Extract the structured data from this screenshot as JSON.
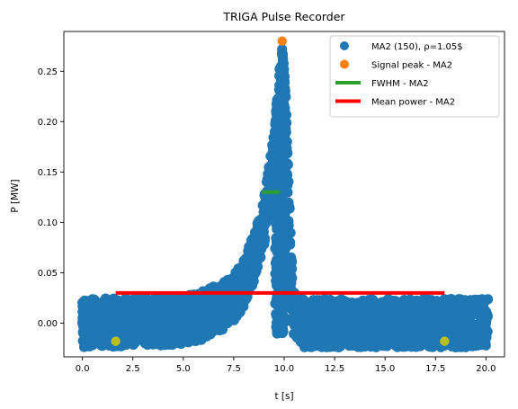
{
  "chart_data": {
    "type": "scatter",
    "title": "TRIGA Pulse Recorder",
    "xlabel": "t [s]",
    "ylabel": "P [MW]",
    "xlim": [
      -0.92,
      20.92
    ],
    "ylim": [
      -0.0335,
      0.2895
    ],
    "xticks": [
      0.0,
      2.5,
      5.0,
      7.5,
      10.0,
      12.5,
      15.0,
      17.5,
      20.0
    ],
    "xtick_labels": [
      "0.0",
      "2.5",
      "5.0",
      "7.5",
      "10.0",
      "12.5",
      "15.0",
      "17.5",
      "20.0"
    ],
    "yticks": [
      0.0,
      0.05,
      0.1,
      0.15,
      0.2,
      0.25
    ],
    "ytick_labels": [
      "0.00",
      "0.05",
      "0.10",
      "0.15",
      "0.20",
      "0.25"
    ],
    "grid": false,
    "legend_position": "top-right",
    "series": [
      {
        "name": "MA2 (150), ρ=1.05$",
        "kind": "scatter-band",
        "color": "#1f77b4",
        "x_range": [
          0.0,
          20.1
        ],
        "noise_band": 0.024,
        "baseline": 0.0,
        "envelope": [
          [
            0.0,
            0.0
          ],
          [
            5.0,
            0.002
          ],
          [
            6.0,
            0.008
          ],
          [
            7.0,
            0.017
          ],
          [
            7.5,
            0.025
          ],
          [
            8.0,
            0.04
          ],
          [
            8.5,
            0.065
          ],
          [
            9.0,
            0.1
          ],
          [
            9.5,
            0.165
          ],
          [
            9.8,
            0.235
          ],
          [
            9.9,
            0.255
          ],
          [
            10.05,
            0.22
          ],
          [
            10.25,
            0.1
          ],
          [
            10.45,
            0.01
          ],
          [
            10.65,
            0.0
          ],
          [
            20.1,
            0.0
          ]
        ]
      },
      {
        "name": "Signal peak - MA2",
        "kind": "point",
        "color": "#ff7f0e",
        "points": [
          [
            9.9,
            0.28
          ]
        ]
      },
      {
        "name": "FWHM - MA2",
        "kind": "line",
        "color": "#2ca02c",
        "x": [
          8.9,
          9.8
        ],
        "y": [
          0.13,
          0.13
        ]
      },
      {
        "name": "Mean power - MA2",
        "kind": "line",
        "color": "#ff0000",
        "x": [
          1.65,
          17.95
        ],
        "y": [
          0.03,
          0.03
        ]
      },
      {
        "name": "",
        "kind": "point",
        "color": "#bcbd22",
        "points": [
          [
            1.65,
            -0.018
          ],
          [
            17.95,
            -0.018
          ]
        ]
      }
    ]
  }
}
